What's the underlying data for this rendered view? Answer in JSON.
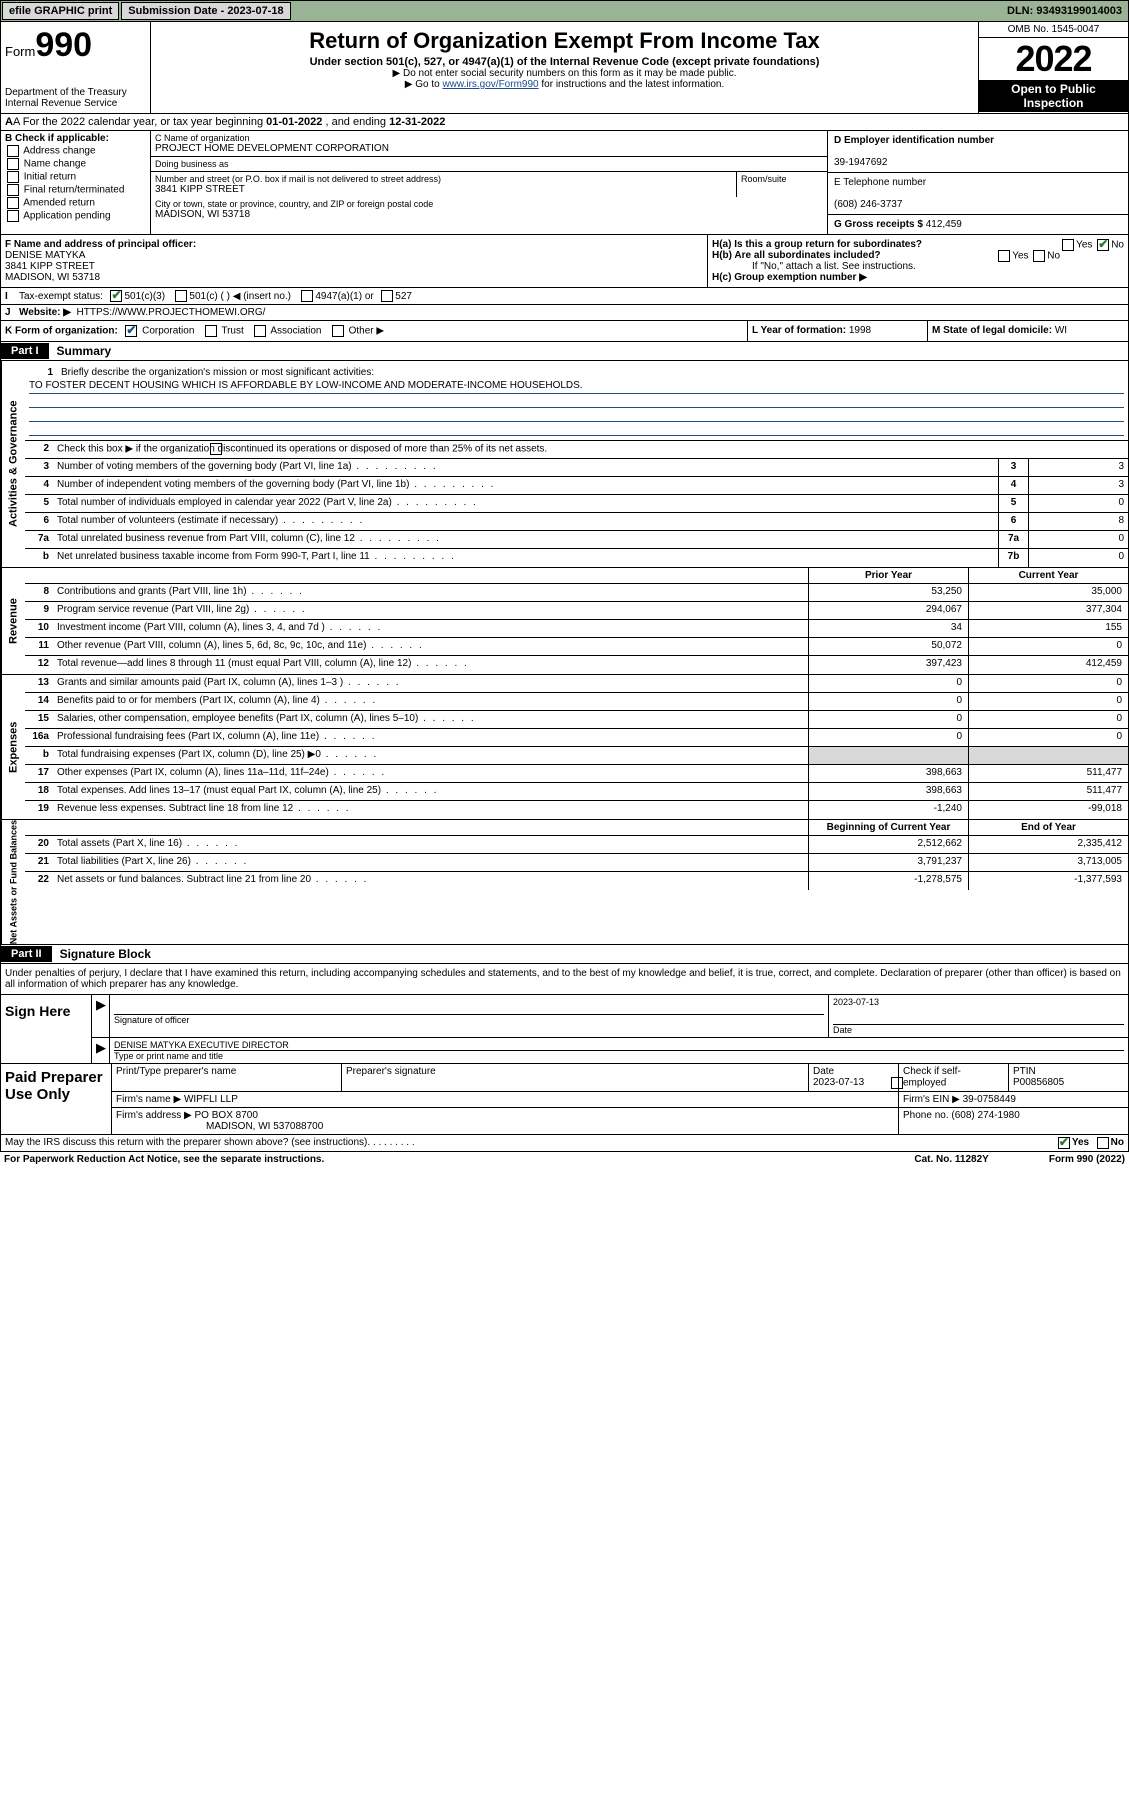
{
  "topbar": {
    "efile": "efile GRAPHIC print",
    "submission_label": "Submission Date - 2023-07-18",
    "dln": "DLN: 93493199014003"
  },
  "header": {
    "form_prefix": "Form",
    "form_number": "990",
    "dept": "Department of the Treasury",
    "irs": "Internal Revenue Service",
    "title": "Return of Organization Exempt From Income Tax",
    "subtitle": "Under section 501(c), 527, or 4947(a)(1) of the Internal Revenue Code (except private foundations)",
    "note1": "▶ Do not enter social security numbers on this form as it may be made public.",
    "note2_pre": "▶ Go to ",
    "note2_link": "www.irs.gov/Form990",
    "note2_post": " for instructions and the latest information.",
    "omb": "OMB No. 1545-0047",
    "year": "2022",
    "inspect": "Open to Public Inspection"
  },
  "row_a": {
    "text_pre": "A For the 2022 calendar year, or tax year beginning ",
    "begin": "01-01-2022",
    "mid": "  , and ending ",
    "end": "12-31-2022"
  },
  "col_b": {
    "hdr": "B Check if applicable:",
    "opts": [
      "Address change",
      "Name change",
      "Initial return",
      "Final return/terminated",
      "Amended return",
      "Application pending"
    ]
  },
  "col_c": {
    "name_label": "C Name of organization",
    "name": "PROJECT HOME DEVELOPMENT CORPORATION",
    "dba_label": "Doing business as",
    "dba": "",
    "street_label": "Number and street (or P.O. box if mail is not delivered to street address)",
    "street": "3841 KIPP STREET",
    "room_label": "Room/suite",
    "city_label": "City or town, state or province, country, and ZIP or foreign postal code",
    "city": "MADISON, WI  53718"
  },
  "col_d": {
    "label": "D Employer identification number",
    "ein": "39-1947692"
  },
  "col_e": {
    "label": "E Telephone number",
    "phone": "(608) 246-3737"
  },
  "col_g": {
    "label": "G Gross receipts $",
    "val": "412,459"
  },
  "col_f": {
    "label": "F Name and address of principal officer:",
    "name": "DENISE MATYKA",
    "street": "3841 KIPP STREET",
    "city": "MADISON, WI  53718"
  },
  "col_h": {
    "ha": "H(a)  Is this a group return for subordinates?",
    "hb": "H(b)  Are all subordinates included?",
    "hb_note": "If \"No,\" attach a list. See instructions.",
    "hc": "H(c)  Group exemption number ▶",
    "yes": "Yes",
    "no": "No"
  },
  "row_i": {
    "label": "Tax-exempt status:",
    "opts": [
      "501(c)(3)",
      "501(c) (   ) ◀ (insert no.)",
      "4947(a)(1) or",
      "527"
    ]
  },
  "row_j": {
    "label": "Website: ▶",
    "val": "HTTPS://WWW.PROJECTHOMEWI.ORG/"
  },
  "row_k": {
    "label": "K Form of organization:",
    "opts": [
      "Corporation",
      "Trust",
      "Association",
      "Other ▶"
    ]
  },
  "row_l": {
    "label": "L Year of formation:",
    "val": "1998"
  },
  "row_m": {
    "label": "M State of legal domicile:",
    "val": "WI"
  },
  "part1": {
    "hdr": "Part I",
    "title": "Summary"
  },
  "mission": {
    "q": "Briefly describe the organization's mission or most significant activities:",
    "text": "TO FOSTER DECENT HOUSING WHICH IS AFFORDABLE BY LOW-INCOME AND MODERATE-INCOME HOUSEHOLDS."
  },
  "gov": {
    "tab": "Activities & Governance",
    "q2": "Check this box ▶        if the organization discontinued its operations or disposed of more than 25% of its net assets.",
    "rows": [
      {
        "n": "3",
        "t": "Number of voting members of the governing body (Part VI, line 1a)",
        "box": "3",
        "v": "3"
      },
      {
        "n": "4",
        "t": "Number of independent voting members of the governing body (Part VI, line 1b)",
        "box": "4",
        "v": "3"
      },
      {
        "n": "5",
        "t": "Total number of individuals employed in calendar year 2022 (Part V, line 2a)",
        "box": "5",
        "v": "0"
      },
      {
        "n": "6",
        "t": "Total number of volunteers (estimate if necessary)",
        "box": "6",
        "v": "8"
      },
      {
        "n": "7a",
        "t": "Total unrelated business revenue from Part VIII, column (C), line 12",
        "box": "7a",
        "v": "0"
      },
      {
        "n": "b",
        "t": "Net unrelated business taxable income from Form 990-T, Part I, line 11",
        "box": "7b",
        "v": "0"
      }
    ]
  },
  "rev": {
    "tab": "Revenue",
    "hdr_prior": "Prior Year",
    "hdr_curr": "Current Year",
    "rows": [
      {
        "n": "8",
        "t": "Contributions and grants (Part VIII, line 1h)",
        "p": "53,250",
        "c": "35,000"
      },
      {
        "n": "9",
        "t": "Program service revenue (Part VIII, line 2g)",
        "p": "294,067",
        "c": "377,304"
      },
      {
        "n": "10",
        "t": "Investment income (Part VIII, column (A), lines 3, 4, and 7d )",
        "p": "34",
        "c": "155"
      },
      {
        "n": "11",
        "t": "Other revenue (Part VIII, column (A), lines 5, 6d, 8c, 9c, 10c, and 11e)",
        "p": "50,072",
        "c": "0"
      },
      {
        "n": "12",
        "t": "Total revenue—add lines 8 through 11 (must equal Part VIII, column (A), line 12)",
        "p": "397,423",
        "c": "412,459"
      }
    ]
  },
  "exp": {
    "tab": "Expenses",
    "rows": [
      {
        "n": "13",
        "t": "Grants and similar amounts paid (Part IX, column (A), lines 1–3 )",
        "p": "0",
        "c": "0"
      },
      {
        "n": "14",
        "t": "Benefits paid to or for members (Part IX, column (A), line 4)",
        "p": "0",
        "c": "0"
      },
      {
        "n": "15",
        "t": "Salaries, other compensation, employee benefits (Part IX, column (A), lines 5–10)",
        "p": "0",
        "c": "0"
      },
      {
        "n": "16a",
        "t": "Professional fundraising fees (Part IX, column (A), line 11e)",
        "p": "0",
        "c": "0"
      },
      {
        "n": "b",
        "t": "Total fundraising expenses (Part IX, column (D), line 25) ▶0",
        "p": "",
        "c": "",
        "grey": true
      },
      {
        "n": "17",
        "t": "Other expenses (Part IX, column (A), lines 11a–11d, 11f–24e)",
        "p": "398,663",
        "c": "511,477"
      },
      {
        "n": "18",
        "t": "Total expenses. Add lines 13–17 (must equal Part IX, column (A), line 25)",
        "p": "398,663",
        "c": "511,477"
      },
      {
        "n": "19",
        "t": "Revenue less expenses. Subtract line 18 from line 12",
        "p": "-1,240",
        "c": "-99,018"
      }
    ]
  },
  "net": {
    "tab": "Net Assets or Fund Balances",
    "hdr_prior": "Beginning of Current Year",
    "hdr_curr": "End of Year",
    "rows": [
      {
        "n": "20",
        "t": "Total assets (Part X, line 16)",
        "p": "2,512,662",
        "c": "2,335,412"
      },
      {
        "n": "21",
        "t": "Total liabilities (Part X, line 26)",
        "p": "3,791,237",
        "c": "3,713,005"
      },
      {
        "n": "22",
        "t": "Net assets or fund balances. Subtract line 21 from line 20",
        "p": "-1,278,575",
        "c": "-1,377,593"
      }
    ]
  },
  "part2": {
    "hdr": "Part II",
    "title": "Signature Block"
  },
  "sig": {
    "intro": "Under penalties of perjury, I declare that I have examined this return, including accompanying schedules and statements, and to the best of my knowledge and belief, it is true, correct, and complete. Declaration of preparer (other than officer) is based on all information of which preparer has any knowledge.",
    "sign_here": "Sign Here",
    "officer_sig": "Signature of officer",
    "date": "Date",
    "date_val": "2023-07-13",
    "officer_name": "DENISE MATYKA  EXECUTIVE DIRECTOR",
    "name_label": "Type or print name and title"
  },
  "paid": {
    "label": "Paid Preparer Use Only",
    "h_name": "Print/Type preparer's name",
    "h_sig": "Preparer's signature",
    "h_date": "Date",
    "date_val": "2023-07-13",
    "check": "Check        if self-employed",
    "ptin_label": "PTIN",
    "ptin": "P00856805",
    "firm_label": "Firm's name    ▶",
    "firm": "WIPFLI LLP",
    "ein_label": "Firm's EIN ▶",
    "ein": "39-0758449",
    "addr_label": "Firm's address ▶",
    "addr1": "PO BOX 8700",
    "addr2": "MADISON, WI  537088700",
    "phone_label": "Phone no.",
    "phone": "(608) 274-1980"
  },
  "discuss": {
    "q": "May the IRS discuss this return with the preparer shown above? (see instructions)",
    "yes": "Yes",
    "no": "No"
  },
  "bottom": {
    "pra": "For Paperwork Reduction Act Notice, see the separate instructions.",
    "cat": "Cat. No. 11282Y",
    "form": "Form 990 (2022)"
  }
}
